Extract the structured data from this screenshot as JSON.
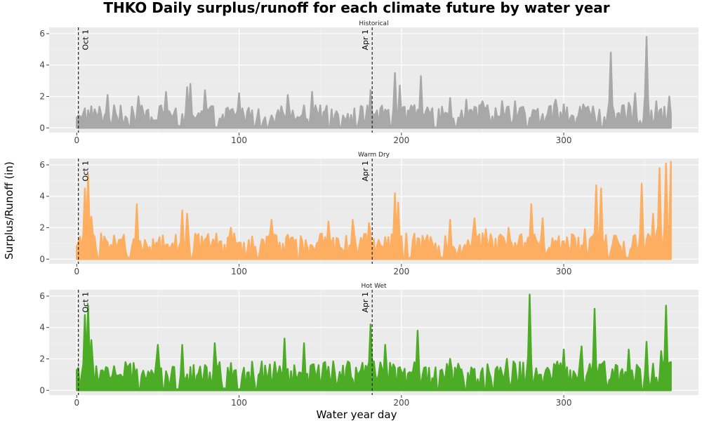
{
  "chart_data": {
    "type": "area",
    "title": "THKO Daily surplus/runoff for each climate future by water year",
    "xlabel": "Water year day",
    "ylabel": "Surplus/Runoff (in)",
    "xlim": [
      -17,
      383
    ],
    "ylim": [
      -0.3,
      6.4
    ],
    "x_ticks": [
      0,
      100,
      200,
      300
    ],
    "y_ticks": [
      0,
      2,
      4,
      6
    ],
    "grid": true,
    "legend": "none",
    "reference_lines": [
      {
        "label": "Oct 1",
        "x": 1
      },
      {
        "label": "Apr 1",
        "x": 182
      }
    ],
    "series": [
      {
        "name": "Historical",
        "color": "#a8a8a8",
        "baseline": 0.45,
        "amp": 1.0,
        "peaks": [
          [
            19,
            2.1
          ],
          [
            38,
            2.0
          ],
          [
            55,
            2.3
          ],
          [
            68,
            2.6
          ],
          [
            70,
            2.8
          ],
          [
            79,
            2.4
          ],
          [
            100,
            2.2
          ],
          [
            130,
            2.1
          ],
          [
            145,
            2.3
          ],
          [
            181,
            2.4
          ],
          [
            196,
            3.5
          ],
          [
            199,
            2.7
          ],
          [
            212,
            3.3
          ],
          [
            230,
            1.9
          ],
          [
            240,
            1.8
          ],
          [
            250,
            1.7
          ],
          [
            262,
            1.7
          ],
          [
            270,
            1.7
          ],
          [
            295,
            1.8
          ],
          [
            300,
            1.5
          ],
          [
            312,
            1.5
          ],
          [
            329,
            4.8
          ],
          [
            340,
            1.6
          ],
          [
            344,
            2.2
          ],
          [
            351,
            5.8
          ],
          [
            357,
            1.7
          ],
          [
            365,
            2.0
          ]
        ]
      },
      {
        "name": "Warm Dry",
        "color": "#fdae61",
        "baseline": 0.45,
        "amp": 1.2,
        "peaks": [
          [
            0,
            0.8
          ],
          [
            5,
            4.5
          ],
          [
            7,
            5.4
          ],
          [
            9,
            2.7
          ],
          [
            37,
            3.5
          ],
          [
            65,
            3.1
          ],
          [
            68,
            2.9
          ],
          [
            95,
            2.0
          ],
          [
            120,
            2.5
          ],
          [
            155,
            2.4
          ],
          [
            170,
            2.5
          ],
          [
            180,
            2.3
          ],
          [
            196,
            4.2
          ],
          [
            198,
            3.6
          ],
          [
            230,
            2.5
          ],
          [
            245,
            2.6
          ],
          [
            252,
            1.9
          ],
          [
            266,
            2.0
          ],
          [
            280,
            3.5
          ],
          [
            287,
            2.6
          ],
          [
            313,
            1.9
          ],
          [
            320,
            4.7
          ],
          [
            323,
            4.5
          ],
          [
            348,
            4.8
          ],
          [
            355,
            2.9
          ],
          [
            359,
            5.8
          ],
          [
            363,
            6.1
          ],
          [
            366,
            6.2
          ]
        ]
      },
      {
        "name": "Hot Wet",
        "color": "#4dac26",
        "baseline": 0.55,
        "amp": 1.3,
        "peaks": [
          [
            0,
            1.3
          ],
          [
            5,
            4.8
          ],
          [
            7,
            5.4
          ],
          [
            9,
            3.2
          ],
          [
            50,
            2.9
          ],
          [
            65,
            2.9
          ],
          [
            85,
            3.0
          ],
          [
            128,
            3.3
          ],
          [
            140,
            3.0
          ],
          [
            181,
            4.2
          ],
          [
            190,
            2.9
          ],
          [
            210,
            3.8
          ],
          [
            230,
            2.0
          ],
          [
            265,
            2.0
          ],
          [
            279,
            6.1
          ],
          [
            300,
            2.6
          ],
          [
            311,
            2.8
          ],
          [
            319,
            5.2
          ],
          [
            340,
            2.6
          ],
          [
            351,
            3.1
          ],
          [
            355,
            1.7
          ],
          [
            360,
            2.5
          ],
          [
            363,
            5.4
          ],
          [
            366,
            1.8
          ]
        ]
      }
    ]
  }
}
